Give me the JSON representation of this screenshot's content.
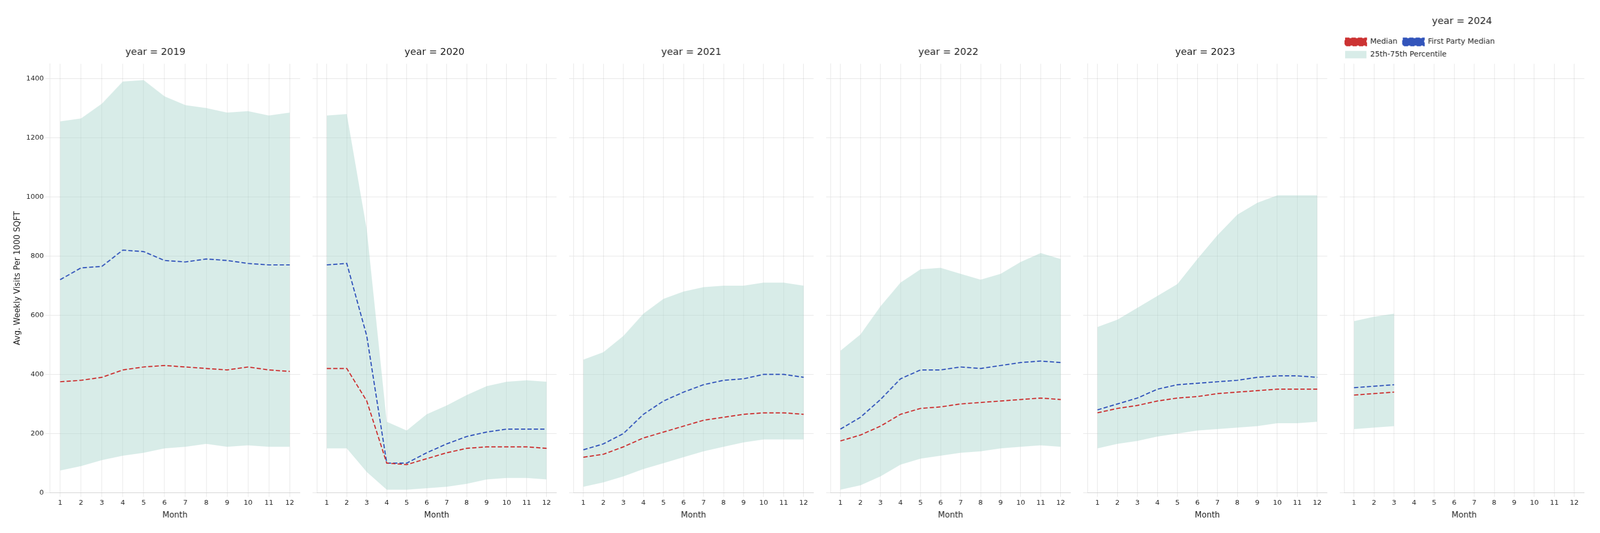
{
  "chart_data": [
    {
      "type": "line",
      "title": "year = 2019",
      "x": [
        1,
        2,
        3,
        4,
        5,
        6,
        7,
        8,
        9,
        10,
        11,
        12
      ],
      "xlabel": "Month",
      "ylabel": "Avg. Weekly Visits Per 1000 SQFT",
      "xlim": [
        0.5,
        12.5
      ],
      "xticks": [
        1,
        2,
        3,
        4,
        5,
        6,
        7,
        8,
        9,
        10,
        11,
        12
      ],
      "ylim": [
        0,
        1450
      ],
      "yticks": [
        0,
        200,
        400,
        600,
        800,
        1000,
        1200,
        1400
      ],
      "grid": true,
      "series": [
        {
          "name": "Median",
          "color": "#cc3333",
          "line_style": "dashed",
          "values": [
            375,
            380,
            390,
            415,
            425,
            430,
            425,
            420,
            415,
            425,
            415,
            410
          ]
        },
        {
          "name": "First Party Median",
          "color": "#3355bb",
          "line_style": "dashed",
          "values": [
            720,
            760,
            765,
            820,
            815,
            785,
            780,
            790,
            785,
            775,
            770,
            770
          ]
        },
        {
          "name": "25th-75th Percentile",
          "type": "band",
          "color": "#a8d5cc",
          "low": [
            75,
            90,
            110,
            125,
            135,
            150,
            155,
            165,
            155,
            160,
            155,
            155
          ],
          "high": [
            1255,
            1265,
            1315,
            1390,
            1395,
            1340,
            1310,
            1300,
            1285,
            1290,
            1275,
            1285
          ]
        }
      ]
    },
    {
      "type": "line",
      "title": "year = 2020",
      "x": [
        1,
        2,
        3,
        4,
        5,
        6,
        7,
        8,
        9,
        10,
        11,
        12
      ],
      "xlabel": "Month",
      "xlim": [
        0.5,
        12.5
      ],
      "xticks": [
        1,
        2,
        3,
        4,
        5,
        6,
        7,
        8,
        9,
        10,
        11,
        12
      ],
      "ylim": [
        0,
        1450
      ],
      "yticks": [
        0,
        200,
        400,
        600,
        800,
        1000,
        1200,
        1400
      ],
      "grid": true,
      "tick_labels": "x",
      "series": [
        {
          "name": "Median",
          "color": "#cc3333",
          "line_style": "dashed",
          "values": [
            420,
            420,
            310,
            100,
            95,
            115,
            135,
            150,
            155,
            155,
            155,
            150
          ]
        },
        {
          "name": "First Party Median",
          "color": "#3355bb",
          "line_style": "dashed",
          "values": [
            770,
            775,
            530,
            100,
            100,
            135,
            165,
            190,
            205,
            215,
            215,
            215
          ]
        },
        {
          "name": "25th-75th Percentile",
          "type": "band",
          "color": "#a8d5cc",
          "low": [
            150,
            150,
            70,
            10,
            10,
            15,
            20,
            30,
            45,
            50,
            50,
            45
          ],
          "high": [
            1275,
            1280,
            890,
            240,
            210,
            265,
            295,
            330,
            360,
            375,
            380,
            375
          ]
        }
      ]
    },
    {
      "type": "line",
      "title": "year = 2021",
      "x": [
        1,
        2,
        3,
        4,
        5,
        6,
        7,
        8,
        9,
        10,
        11,
        12
      ],
      "xlabel": "Month",
      "xlim": [
        0.5,
        12.5
      ],
      "xticks": [
        1,
        2,
        3,
        4,
        5,
        6,
        7,
        8,
        9,
        10,
        11,
        12
      ],
      "ylim": [
        0,
        1450
      ],
      "yticks": [
        0,
        200,
        400,
        600,
        800,
        1000,
        1200,
        1400
      ],
      "grid": true,
      "tick_labels": "x",
      "series": [
        {
          "name": "Median",
          "color": "#cc3333",
          "line_style": "dashed",
          "values": [
            120,
            130,
            155,
            185,
            205,
            225,
            245,
            255,
            265,
            270,
            270,
            265
          ]
        },
        {
          "name": "First Party Median",
          "color": "#3355bb",
          "line_style": "dashed",
          "values": [
            145,
            165,
            200,
            265,
            310,
            340,
            365,
            380,
            385,
            400,
            400,
            390
          ]
        },
        {
          "name": "25th-75th Percentile",
          "type": "band",
          "color": "#a8d5cc",
          "low": [
            20,
            35,
            55,
            80,
            100,
            120,
            140,
            155,
            170,
            180,
            180,
            180
          ],
          "high": [
            450,
            475,
            530,
            605,
            655,
            680,
            695,
            700,
            700,
            710,
            710,
            700
          ]
        }
      ]
    },
    {
      "type": "line",
      "title": "year = 2022",
      "x": [
        1,
        2,
        3,
        4,
        5,
        6,
        7,
        8,
        9,
        10,
        11,
        12
      ],
      "xlabel": "Month",
      "xlim": [
        0.5,
        12.5
      ],
      "xticks": [
        1,
        2,
        3,
        4,
        5,
        6,
        7,
        8,
        9,
        10,
        11,
        12
      ],
      "ylim": [
        0,
        1450
      ],
      "yticks": [
        0,
        200,
        400,
        600,
        800,
        1000,
        1200,
        1400
      ],
      "grid": true,
      "tick_labels": "x",
      "series": [
        {
          "name": "Median",
          "color": "#cc3333",
          "line_style": "dashed",
          "values": [
            175,
            195,
            225,
            265,
            285,
            290,
            300,
            305,
            310,
            315,
            320,
            315
          ]
        },
        {
          "name": "First Party Median",
          "color": "#3355bb",
          "line_style": "dashed",
          "values": [
            215,
            255,
            315,
            385,
            415,
            415,
            425,
            420,
            430,
            440,
            445,
            440
          ]
        },
        {
          "name": "25th-75th Percentile",
          "type": "band",
          "color": "#a8d5cc",
          "low": [
            10,
            25,
            55,
            95,
            115,
            125,
            135,
            140,
            150,
            155,
            160,
            155
          ],
          "high": [
            480,
            535,
            630,
            710,
            755,
            760,
            740,
            720,
            740,
            780,
            810,
            790
          ]
        }
      ]
    },
    {
      "type": "line",
      "title": "year = 2023",
      "x": [
        1,
        2,
        3,
        4,
        5,
        6,
        7,
        8,
        9,
        10,
        11,
        12
      ],
      "xlabel": "Month",
      "xlim": [
        0.5,
        12.5
      ],
      "xticks": [
        1,
        2,
        3,
        4,
        5,
        6,
        7,
        8,
        9,
        10,
        11,
        12
      ],
      "ylim": [
        0,
        1450
      ],
      "yticks": [
        0,
        200,
        400,
        600,
        800,
        1000,
        1200,
        1400
      ],
      "grid": true,
      "tick_labels": "x",
      "series": [
        {
          "name": "Median",
          "color": "#cc3333",
          "line_style": "dashed",
          "values": [
            270,
            285,
            295,
            310,
            320,
            325,
            335,
            340,
            345,
            350,
            350,
            350
          ]
        },
        {
          "name": "First Party Median",
          "color": "#3355bb",
          "line_style": "dashed",
          "values": [
            280,
            300,
            320,
            350,
            365,
            370,
            375,
            380,
            390,
            395,
            395,
            390
          ]
        },
        {
          "name": "25th-75th Percentile",
          "type": "band",
          "color": "#a8d5cc",
          "low": [
            150,
            165,
            175,
            190,
            200,
            210,
            215,
            220,
            225,
            235,
            235,
            240
          ],
          "high": [
            560,
            585,
            625,
            665,
            705,
            790,
            870,
            940,
            980,
            1005,
            1005,
            1005
          ]
        }
      ]
    },
    {
      "type": "line",
      "title": "year = 2024",
      "x": [
        1,
        2,
        3,
        4,
        5,
        6,
        7,
        8,
        9,
        10,
        11,
        12
      ],
      "xlabel": "Month",
      "xlim": [
        0.5,
        12.5
      ],
      "xticks": [
        1,
        2,
        3,
        4,
        5,
        6,
        7,
        8,
        9,
        10,
        11,
        12
      ],
      "ylim": [
        0,
        1450
      ],
      "yticks": [
        0,
        200,
        400,
        600,
        800,
        1000,
        1200,
        1400
      ],
      "grid": true,
      "tick_labels": "x",
      "legend": "upper left",
      "series": [
        {
          "name": "Median",
          "color": "#cc3333",
          "line_style": "dashed",
          "values": [
            330,
            335,
            340,
            null,
            null,
            null,
            null,
            null,
            null,
            null,
            null,
            null
          ]
        },
        {
          "name": "First Party Median",
          "color": "#3355bb",
          "line_style": "dashed",
          "values": [
            355,
            360,
            365,
            null,
            null,
            null,
            null,
            null,
            null,
            null,
            null,
            null
          ]
        },
        {
          "name": "25th-75th Percentile",
          "type": "band",
          "color": "#a8d5cc",
          "low": [
            215,
            220,
            225,
            null,
            null,
            null,
            null,
            null,
            null,
            null,
            null,
            null
          ],
          "high": [
            580,
            595,
            605,
            null,
            null,
            null,
            null,
            null,
            null,
            null,
            null,
            null
          ]
        }
      ]
    }
  ]
}
